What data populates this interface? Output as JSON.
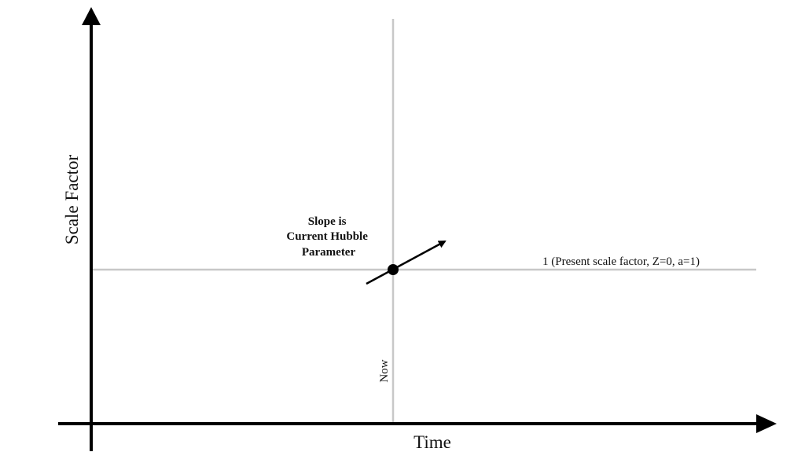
{
  "diagram": {
    "y_axis_label": "Scale Factor",
    "x_axis_label": "Time",
    "present_line_label": "1 (Present scale factor, Z=0, a=1)",
    "now_label": "Now",
    "slope_label": [
      "Slope is",
      "Current Hubble",
      "Parameter"
    ]
  },
  "colors": {
    "axis": "#000000",
    "guide_lines": "#c8c8c8",
    "text": "#111111"
  }
}
